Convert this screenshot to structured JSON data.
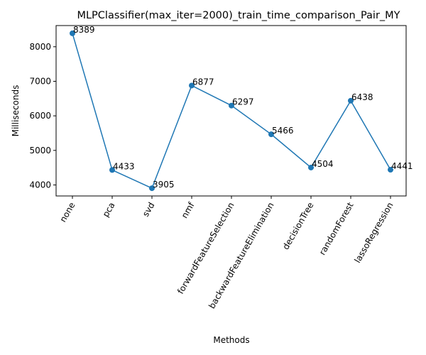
{
  "chart_data": {
    "type": "line",
    "title": "MLPClassifier(max_iter=2000)_train_time_comparison_Pair_MY",
    "xlabel": "Methods",
    "ylabel": "Milliseconds",
    "categories": [
      "none",
      "pca",
      "svd",
      "nmf",
      "forwardFeatureSelection",
      "backwardFeatureElimination",
      "decisionTree",
      "randomForest",
      "lassoRegression"
    ],
    "values": [
      8389,
      4433,
      3905,
      6877,
      6297,
      5466,
      4504,
      6438,
      4441
    ],
    "data_labels": [
      "8389",
      "4433",
      "3905",
      "6877",
      "6297",
      "5466",
      "4504",
      "6438",
      "4441"
    ],
    "yticks": [
      4000,
      5000,
      6000,
      7000,
      8000
    ],
    "ytick_labels": [
      "4000",
      "5000",
      "6000",
      "7000",
      "8000"
    ],
    "ylim": [
      3681,
      8613
    ],
    "grid": false,
    "legend": false,
    "markers": true,
    "xtick_rotation": 60,
    "line_color": "#1f77b4"
  }
}
